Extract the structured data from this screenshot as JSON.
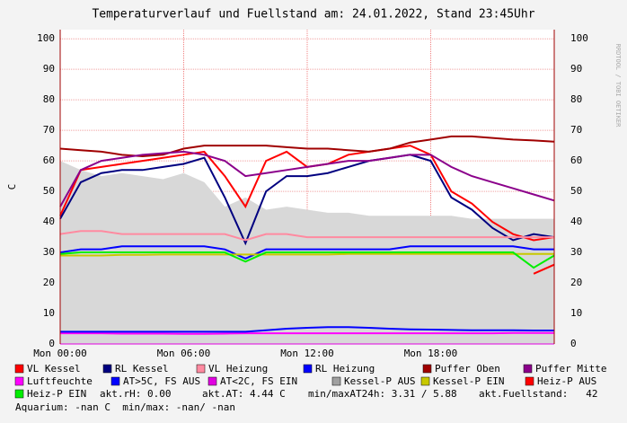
{
  "chart_data": {
    "type": "line",
    "title": "Temperaturverlauf und Fuellstand am: 24.01.2022, Stand 23:45Uhr",
    "y_label": "C",
    "watermark": "RRDTOOL / TOBI OETIKER",
    "x": [
      0,
      1,
      2,
      3,
      4,
      5,
      6,
      7,
      8,
      9,
      10,
      11,
      12,
      13,
      14,
      15,
      16,
      17,
      18,
      19,
      20,
      21,
      22,
      23,
      24
    ],
    "xlim": [
      0,
      24
    ],
    "xticks": [
      {
        "value": 0,
        "label": "Mon 00:00"
      },
      {
        "value": 6,
        "label": "Mon 06:00"
      },
      {
        "value": 12,
        "label": "Mon 12:00"
      },
      {
        "value": 18,
        "label": "Mon 18:00"
      }
    ],
    "ylim": [
      0,
      103
    ],
    "yticks": [
      0,
      10,
      20,
      30,
      40,
      50,
      60,
      70,
      80,
      90,
      100
    ],
    "grid": true,
    "series": [
      {
        "name": "Kessel-P AUS",
        "color": "#a0a0a0",
        "area": true,
        "values": [
          60,
          57,
          55,
          56,
          55,
          54,
          56,
          53,
          45,
          48,
          44,
          45,
          44,
          43,
          43,
          42,
          42,
          42,
          42,
          42,
          41,
          41,
          41,
          41,
          41
        ]
      },
      {
        "name": "VL Kessel",
        "color": "#ff0000",
        "values": [
          42,
          57,
          58,
          59,
          60,
          61,
          62,
          63,
          55,
          45,
          60,
          63,
          58,
          59,
          62,
          63,
          64,
          65,
          62,
          50,
          46,
          40,
          36,
          34,
          35
        ]
      },
      {
        "name": "RL Kessel",
        "color": "#000080",
        "values": [
          41,
          53,
          56,
          57,
          57,
          58,
          59,
          61,
          48,
          33,
          50,
          55,
          55,
          56,
          58,
          60,
          61,
          62,
          60,
          48,
          44,
          38,
          34,
          36,
          35
        ]
      },
      {
        "name": "VL Heizung",
        "color": "#ff8aa0",
        "values": [
          36,
          37,
          37,
          36,
          36,
          36,
          36,
          36,
          36,
          34,
          36,
          36,
          35,
          35,
          35,
          35,
          35,
          35,
          35,
          35,
          35,
          35,
          35,
          35,
          35
        ]
      },
      {
        "name": "RL Heizung",
        "color": "#0000ff",
        "values": [
          30,
          31,
          31,
          32,
          32,
          32,
          32,
          32,
          31,
          28,
          31,
          31,
          31,
          31,
          31,
          31,
          31,
          32,
          32,
          32,
          32,
          32,
          32,
          31,
          31
        ]
      },
      {
        "name": "Puffer Oben",
        "color": "#a00000",
        "values": [
          64,
          63.5,
          63,
          62,
          61.5,
          62,
          64,
          65,
          65,
          65,
          65,
          64.5,
          64,
          64,
          63.5,
          63,
          64,
          66,
          67,
          68,
          68,
          67.5,
          67,
          66.7,
          66.3
        ]
      },
      {
        "name": "Puffer Mitte",
        "color": "#8b008b",
        "values": [
          45,
          57,
          60,
          61,
          62,
          62.5,
          63,
          62,
          60,
          55,
          56,
          57,
          58,
          59,
          60,
          60,
          61,
          62,
          62,
          58,
          55,
          53,
          51,
          49,
          47
        ]
      },
      {
        "name": "Luftfeuchte",
        "color": "#ff00ff",
        "values": [
          3.5,
          3.5,
          3.5,
          3.4,
          3.4,
          3.4,
          3.3,
          3.3,
          3.4,
          3.5,
          3.5,
          3.5,
          3.5,
          3.5,
          3.5,
          3.5,
          3.5,
          3.5,
          3.5,
          3.5,
          3.5,
          3.5,
          3.6,
          3.6,
          3.6
        ]
      },
      {
        "name": "AT>5C, FS AUS",
        "color": "#0000ff",
        "values": [
          4,
          4,
          4,
          4,
          4,
          4,
          4,
          4,
          4,
          4,
          4.5,
          5,
          5.3,
          5.5,
          5.5,
          5.3,
          5,
          4.8,
          4.7,
          4.6,
          4.5,
          4.5,
          4.5,
          4.4,
          4.4
        ]
      },
      {
        "name": "AT<2C, FS EIN",
        "color": "#e000e0",
        "values": [
          null,
          null,
          null,
          null,
          null,
          null,
          null,
          null,
          null,
          null,
          null,
          null,
          null,
          null,
          null,
          null,
          null,
          null,
          null,
          null,
          null,
          null,
          null,
          null,
          null
        ]
      },
      {
        "name": "Kessel-P EIN",
        "color": "#c8c800",
        "values": [
          29,
          29,
          29,
          29.2,
          29.2,
          29.3,
          29.3,
          29.3,
          29.3,
          29.3,
          29.3,
          29.3,
          29.3,
          29.3,
          29.5,
          29.5,
          29.5,
          29.5,
          29.5,
          29.5,
          29.5,
          29.5,
          29.5,
          29.5,
          29.5
        ]
      },
      {
        "name": "Heiz-P AUS",
        "color": "#ff0000",
        "values": [
          null,
          null,
          null,
          null,
          null,
          null,
          null,
          null,
          null,
          null,
          null,
          null,
          null,
          null,
          null,
          null,
          null,
          null,
          null,
          null,
          null,
          null,
          null,
          23,
          26
        ]
      },
      {
        "name": "Heiz-P EIN",
        "color": "#00ee00",
        "values": [
          29.5,
          30,
          30,
          30,
          30,
          30,
          30,
          30,
          30,
          27,
          30,
          30,
          30,
          30,
          30,
          30,
          30,
          30,
          30,
          30,
          30,
          30,
          30,
          25,
          29
        ]
      }
    ],
    "status": [
      "akt.rH: 0.00",
      "akt.AT: 4.44 C",
      "min/maxAT24h: 3.31 / 5.88",
      "akt.Fuellstand:   42"
    ],
    "footer": "Aquarium: -nan C  min/max: -nan/ -nan"
  }
}
